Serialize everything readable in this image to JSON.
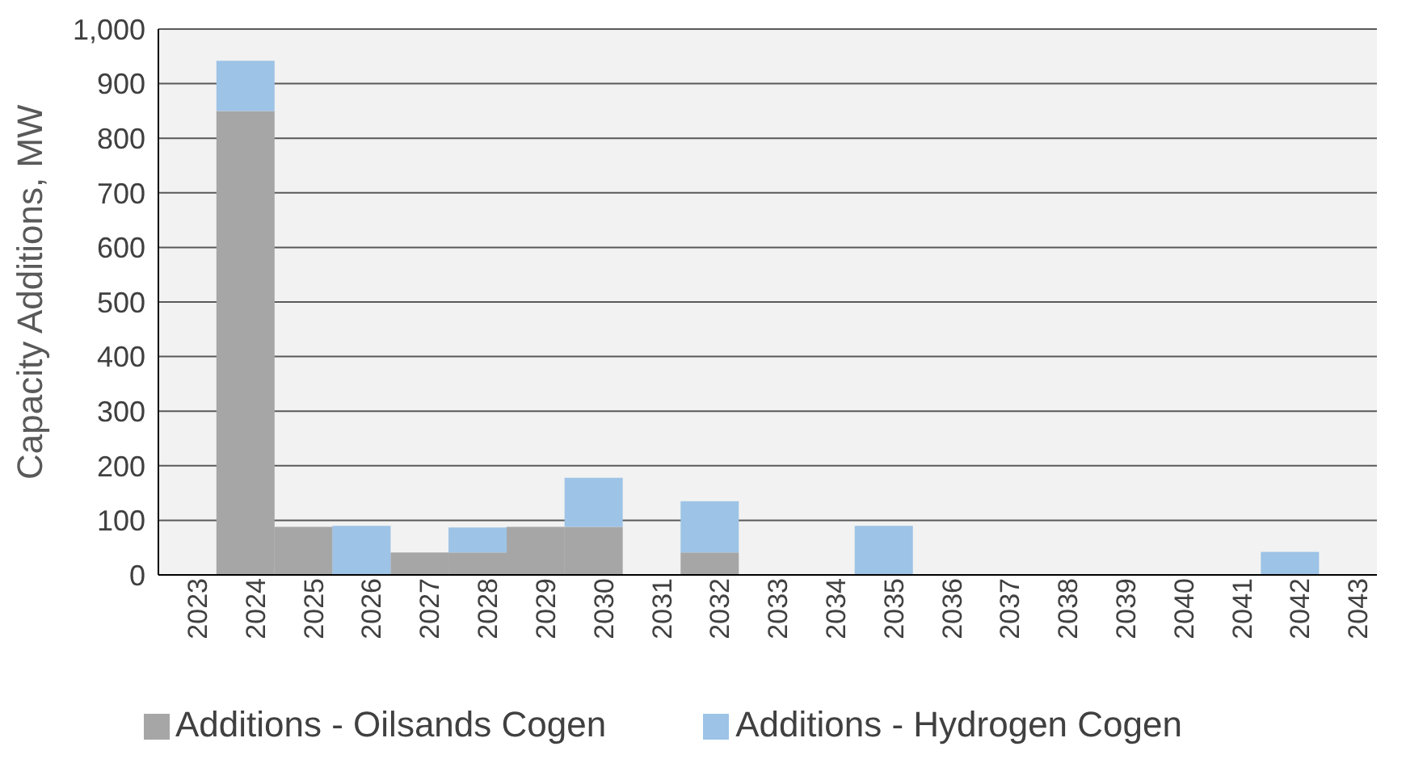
{
  "chart_data": {
    "type": "bar",
    "stacked": true,
    "ylabel": "Capacity Additions, MW",
    "categories": [
      "2023",
      "2024",
      "2025",
      "2026",
      "2027",
      "2028",
      "2029",
      "2030",
      "2031",
      "2032",
      "2033",
      "2034",
      "2035",
      "2036",
      "2037",
      "2038",
      "2039",
      "2040",
      "2041",
      "2042",
      "2043"
    ],
    "series": [
      {
        "name": "Additions - Oilsands Cogen",
        "color": "#a6a6a6",
        "values": [
          0,
          850,
          88,
          0,
          41,
          41,
          88,
          88,
          0,
          41,
          0,
          0,
          0,
          0,
          0,
          0,
          0,
          0,
          0,
          0,
          0
        ]
      },
      {
        "name": "Additions - Hydrogen Cogen",
        "color": "#9dc3e6",
        "values": [
          0,
          92,
          0,
          90,
          0,
          46,
          0,
          90,
          0,
          94,
          0,
          0,
          90,
          0,
          0,
          0,
          0,
          0,
          0,
          42,
          0
        ]
      }
    ],
    "ylim": [
      0,
      1000
    ],
    "yticks": [
      0,
      100,
      200,
      300,
      400,
      500,
      600,
      700,
      800,
      900,
      {
        "value": 1000,
        "label": "1,000"
      }
    ],
    "grid": "y",
    "legend": "bottom"
  }
}
